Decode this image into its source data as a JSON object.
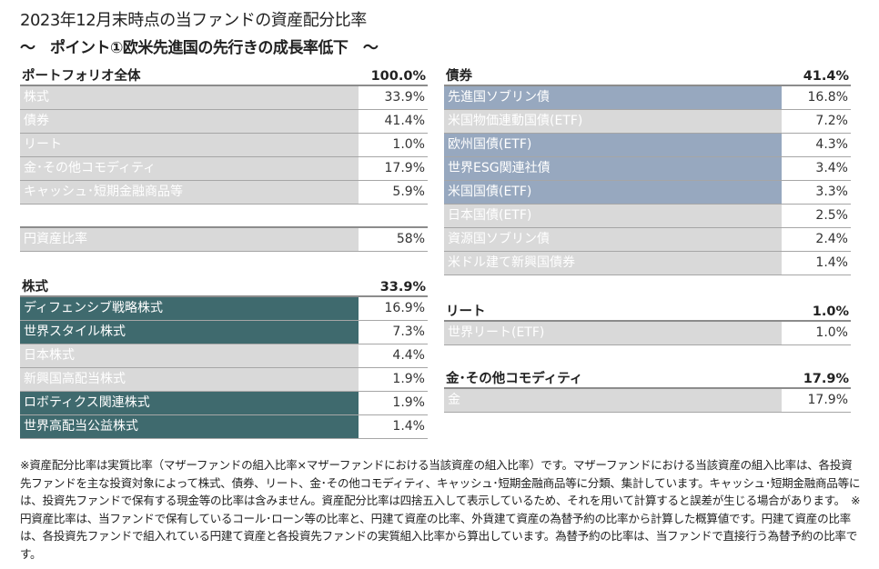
{
  "title": "2023年12月末時点の当ファンドの資産配分比率",
  "subtitle": "～　ポイント①欧米先進国の先行きの成長率低下　～",
  "colors": {
    "gray": "#d9d9d9",
    "teal": "#3f6a6e",
    "bluegray": "#97a8bf"
  },
  "tables": {
    "portfolio": {
      "header": "ポートフォリオ全体",
      "total": "100.0%",
      "rows": [
        {
          "label": "株式",
          "value": "33.9%",
          "color": "gray"
        },
        {
          "label": "債券",
          "value": "41.4%",
          "color": "gray"
        },
        {
          "label": "リート",
          "value": "1.0%",
          "color": "gray"
        },
        {
          "label": "金･その他コモディティ",
          "value": "17.9%",
          "color": "gray"
        },
        {
          "label": "キャッシュ･短期金融商品等",
          "value": "5.9%",
          "color": "gray"
        }
      ]
    },
    "yen": {
      "header": "",
      "total": "",
      "rows": [
        {
          "label": "円資産比率",
          "value": "58%",
          "color": "gray"
        }
      ]
    },
    "stocks": {
      "header": "株式",
      "total": "33.9%",
      "rows": [
        {
          "label": "ディフェンシブ戦略株式",
          "value": "16.9%",
          "color": "teal"
        },
        {
          "label": "世界スタイル株式",
          "value": "7.3%",
          "color": "teal"
        },
        {
          "label": "日本株式",
          "value": "4.4%",
          "color": "gray"
        },
        {
          "label": "新興国高配当株式",
          "value": "1.9%",
          "color": "gray"
        },
        {
          "label": "ロボティクス関連株式",
          "value": "1.9%",
          "color": "teal"
        },
        {
          "label": "世界高配当公益株式",
          "value": "1.4%",
          "color": "teal"
        }
      ]
    },
    "bonds": {
      "header": "債券",
      "total": "41.4%",
      "rows": [
        {
          "label": "先進国ソブリン債",
          "value": "16.8%",
          "color": "bluegray"
        },
        {
          "label": "米国物価連動国債(ETF)",
          "value": "7.2%",
          "color": "gray"
        },
        {
          "label": "欧州国債(ETF)",
          "value": "4.3%",
          "color": "bluegray"
        },
        {
          "label": "世界ESG関連社債",
          "value": "3.4%",
          "color": "bluegray"
        },
        {
          "label": "米国国債(ETF)",
          "value": "3.3%",
          "color": "bluegray"
        },
        {
          "label": "日本国債(ETF)",
          "value": "2.5%",
          "color": "gray"
        },
        {
          "label": "資源国ソブリン債",
          "value": "2.4%",
          "color": "gray"
        },
        {
          "label": "米ドル建て新興国債券",
          "value": "1.4%",
          "color": "gray"
        }
      ]
    },
    "reit": {
      "header": "リート",
      "total": "1.0%",
      "rows": [
        {
          "label": "世界リート(ETF)",
          "value": "1.0%",
          "color": "gray"
        }
      ]
    },
    "gold": {
      "header": "金･その他コモディティ",
      "total": "17.9%",
      "rows": [
        {
          "label": "金",
          "value": "17.9%",
          "color": "gray"
        }
      ]
    }
  },
  "footnote": "※資産配分比率は実質比率（マザーファンドの組入比率×マザーファンドにおける当該資産の組入比率）です。マザーファンドにおける当該資産の組入比率は、各投資先ファンドを主な投資対象によって株式、債券、リート、金･その他コモディティ、キャッシュ･短期金融商品等に分類、集計しています。キャッシュ･短期金融商品等には、投資先ファンドで保有する現金等の比率は含みません。資産配分比率は四捨五入して表示しているため、それを用いて計算すると誤差が生じる場合があります。　※円資産比率は、当ファンドで保有しているコール･ローン等の比率と、円建て資産の比率、外貨建て資産の為替予約の比率から計算した概算値です。円建て資産の比率は、各投資先ファンドで組入れている円建て資産と各投資先ファンドの実質組入比率から算出しています。為替予約の比率は、当ファンドで直接行う為替予約の比率です。"
}
